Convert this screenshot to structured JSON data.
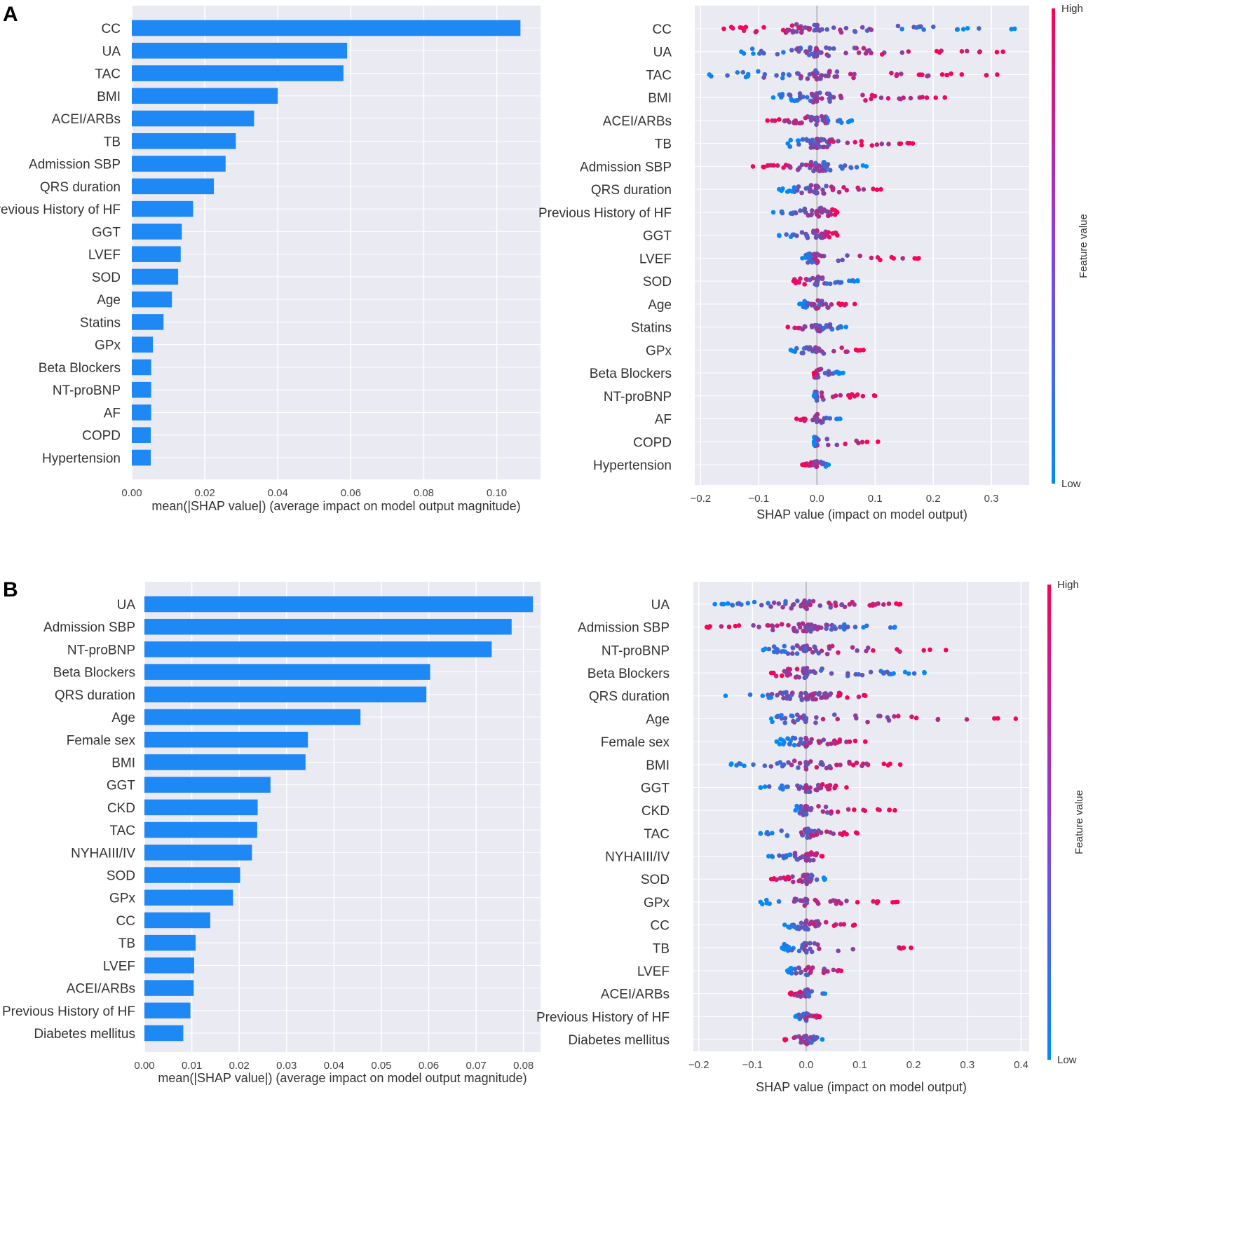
{
  "figure": {
    "panel_labels": [
      "A",
      "B"
    ],
    "colorbar": {
      "high_label": "High",
      "low_label": "Low",
      "title": "Feature value",
      "high_color": "#ff0052",
      "low_color": "#008bfb"
    },
    "bar_color": "#1e88f5",
    "plot_background": "#eaeaf2"
  },
  "chart_data": [
    {
      "id": "A-bar",
      "type": "bar",
      "orientation": "horizontal",
      "xlabel": "mean(|SHAP value|) (average impact on model output magnitude)",
      "xlim": [
        0,
        0.112
      ],
      "xticks": [
        0.0,
        0.02,
        0.04,
        0.06,
        0.08,
        0.1
      ],
      "xtick_labels": [
        "0.00",
        "0.02",
        "0.04",
        "0.06",
        "0.08",
        "0.10"
      ],
      "categories": [
        "CC",
        "UA",
        "TAC",
        "BMI",
        "ACEI/ARBs",
        "TB",
        "Admission SBP",
        "QRS duration",
        "Previous History of HF",
        "GGT",
        "LVEF",
        "SOD",
        "Age",
        "Statins",
        "GPx",
        "Beta Blockers",
        "NT-proBNP",
        "AF",
        "COPD",
        "Hypertension"
      ],
      "values": [
        0.1065,
        0.059,
        0.058,
        0.04,
        0.0335,
        0.0285,
        0.0257,
        0.0225,
        0.0168,
        0.0137,
        0.0134,
        0.0127,
        0.011,
        0.0087,
        0.0058,
        0.0053,
        0.0053,
        0.0053,
        0.0052,
        0.0052
      ]
    },
    {
      "id": "A-beeswarm",
      "type": "scatter",
      "xlabel": "SHAP value (impact on model output)",
      "xlim": [
        -0.21,
        0.365
      ],
      "xticks": [
        -0.2,
        -0.1,
        0.0,
        0.1,
        0.2,
        0.3
      ],
      "xtick_labels": [
        "−0.2",
        "−0.1",
        "0.0",
        "0.1",
        "0.2",
        "0.3"
      ],
      "categories": [
        "CC",
        "UA",
        "TAC",
        "BMI",
        "ACEI/ARBs",
        "TB",
        "Admission SBP",
        "QRS duration",
        "Previous History of HF",
        "GGT",
        "LVEF",
        "SOD",
        "Age",
        "Statins",
        "GPx",
        "Beta Blockers",
        "NT-proBNP",
        "AF",
        "COPD",
        "Hypertension"
      ],
      "ranges": [
        [
          -0.16,
          0.34
        ],
        [
          -0.13,
          0.32
        ],
        [
          -0.185,
          0.31
        ],
        [
          -0.075,
          0.22
        ],
        [
          -0.085,
          0.06
        ],
        [
          -0.05,
          0.165
        ],
        [
          -0.11,
          0.085
        ],
        [
          -0.065,
          0.11
        ],
        [
          -0.075,
          0.035
        ],
        [
          -0.065,
          0.035
        ],
        [
          -0.025,
          0.175
        ],
        [
          -0.04,
          0.07
        ],
        [
          -0.03,
          0.065
        ],
        [
          -0.05,
          0.05
        ],
        [
          -0.045,
          0.08
        ],
        [
          -0.005,
          0.045
        ],
        [
          -0.005,
          0.1
        ],
        [
          -0.035,
          0.04
        ],
        [
          -0.005,
          0.105
        ],
        [
          -0.025,
          0.02
        ]
      ],
      "high_side": [
        "neg",
        "pos",
        "pos",
        "pos",
        "neg",
        "pos",
        "neg",
        "pos",
        "pos",
        "pos",
        "pos",
        "neg",
        "pos",
        "neg",
        "pos",
        "neg",
        "pos",
        "neg",
        "pos",
        "neg"
      ],
      "densities": [
        60,
        60,
        60,
        55,
        45,
        50,
        55,
        45,
        35,
        35,
        40,
        35,
        35,
        30,
        30,
        30,
        30,
        25,
        25,
        25
      ]
    },
    {
      "id": "B-bar",
      "type": "bar",
      "orientation": "horizontal",
      "xlabel": "mean(|SHAP value|) (average impact on model output magnitude)",
      "xlim": [
        0,
        0.0836
      ],
      "xticks": [
        0.0,
        0.01,
        0.02,
        0.03,
        0.04,
        0.05,
        0.06,
        0.07,
        0.08
      ],
      "xtick_labels": [
        "0.00",
        "0.01",
        "0.02",
        "0.03",
        "0.04",
        "0.05",
        "0.06",
        "0.07",
        "0.08"
      ],
      "categories": [
        "UA",
        "Admission SBP",
        "NT-proBNP",
        "Beta Blockers",
        "QRS duration",
        "Age",
        "Female sex",
        "BMI",
        "GGT",
        "CKD",
        "TAC",
        "NYHAIII/IV",
        "SOD",
        "GPx",
        "CC",
        "TB",
        "LVEF",
        "ACEI/ARBs",
        "Previous History of HF",
        "Diabetes mellitus"
      ],
      "values": [
        0.082,
        0.0775,
        0.0733,
        0.0603,
        0.0595,
        0.0456,
        0.0345,
        0.034,
        0.0266,
        0.0239,
        0.0238,
        0.0227,
        0.0202,
        0.0187,
        0.0139,
        0.0108,
        0.0105,
        0.0104,
        0.0097,
        0.0082
      ]
    },
    {
      "id": "B-beeswarm",
      "type": "scatter",
      "xlabel": "SHAP value (impact on model output)",
      "xlim": [
        -0.21,
        0.415
      ],
      "xticks": [
        -0.2,
        -0.1,
        0.0,
        0.1,
        0.2,
        0.3,
        0.4
      ],
      "xtick_labels": [
        "−0.2",
        "−0.1",
        "0.0",
        "0.1",
        "0.2",
        "0.3",
        "0.4"
      ],
      "categories": [
        "UA",
        "Admission SBP",
        "NT-proBNP",
        "Beta Blockers",
        "QRS duration",
        "Age",
        "Female sex",
        "BMI",
        "GGT",
        "CKD",
        "TAC",
        "NYHAIII/IV",
        "SOD",
        "GPx",
        "CC",
        "TB",
        "LVEF",
        "ACEI/ARBs",
        "Previous History of HF",
        "Diabetes mellitus"
      ],
      "ranges": [
        [
          -0.17,
          0.175
        ],
        [
          -0.185,
          0.165
        ],
        [
          -0.08,
          0.26
        ],
        [
          -0.065,
          0.22
        ],
        [
          -0.15,
          0.11
        ],
        [
          -0.065,
          0.39
        ],
        [
          -0.055,
          0.11
        ],
        [
          -0.14,
          0.175
        ],
        [
          -0.085,
          0.075
        ],
        [
          -0.02,
          0.165
        ],
        [
          -0.085,
          0.095
        ],
        [
          -0.07,
          0.03
        ],
        [
          -0.065,
          0.035
        ],
        [
          -0.085,
          0.17
        ],
        [
          -0.04,
          0.09
        ],
        [
          -0.045,
          0.195
        ],
        [
          -0.035,
          0.065
        ],
        [
          -0.03,
          0.035
        ],
        [
          -0.02,
          0.025
        ],
        [
          -0.04,
          0.03
        ]
      ],
      "high_side": [
        "pos",
        "neg",
        "pos",
        "neg",
        "pos",
        "pos",
        "pos",
        "pos",
        "pos",
        "pos",
        "pos",
        "pos",
        "neg",
        "pos",
        "pos",
        "pos",
        "pos",
        "neg",
        "pos",
        "neg"
      ],
      "densities": [
        60,
        60,
        55,
        50,
        55,
        45,
        45,
        45,
        40,
        40,
        40,
        35,
        35,
        35,
        35,
        35,
        30,
        30,
        30,
        25
      ]
    }
  ]
}
